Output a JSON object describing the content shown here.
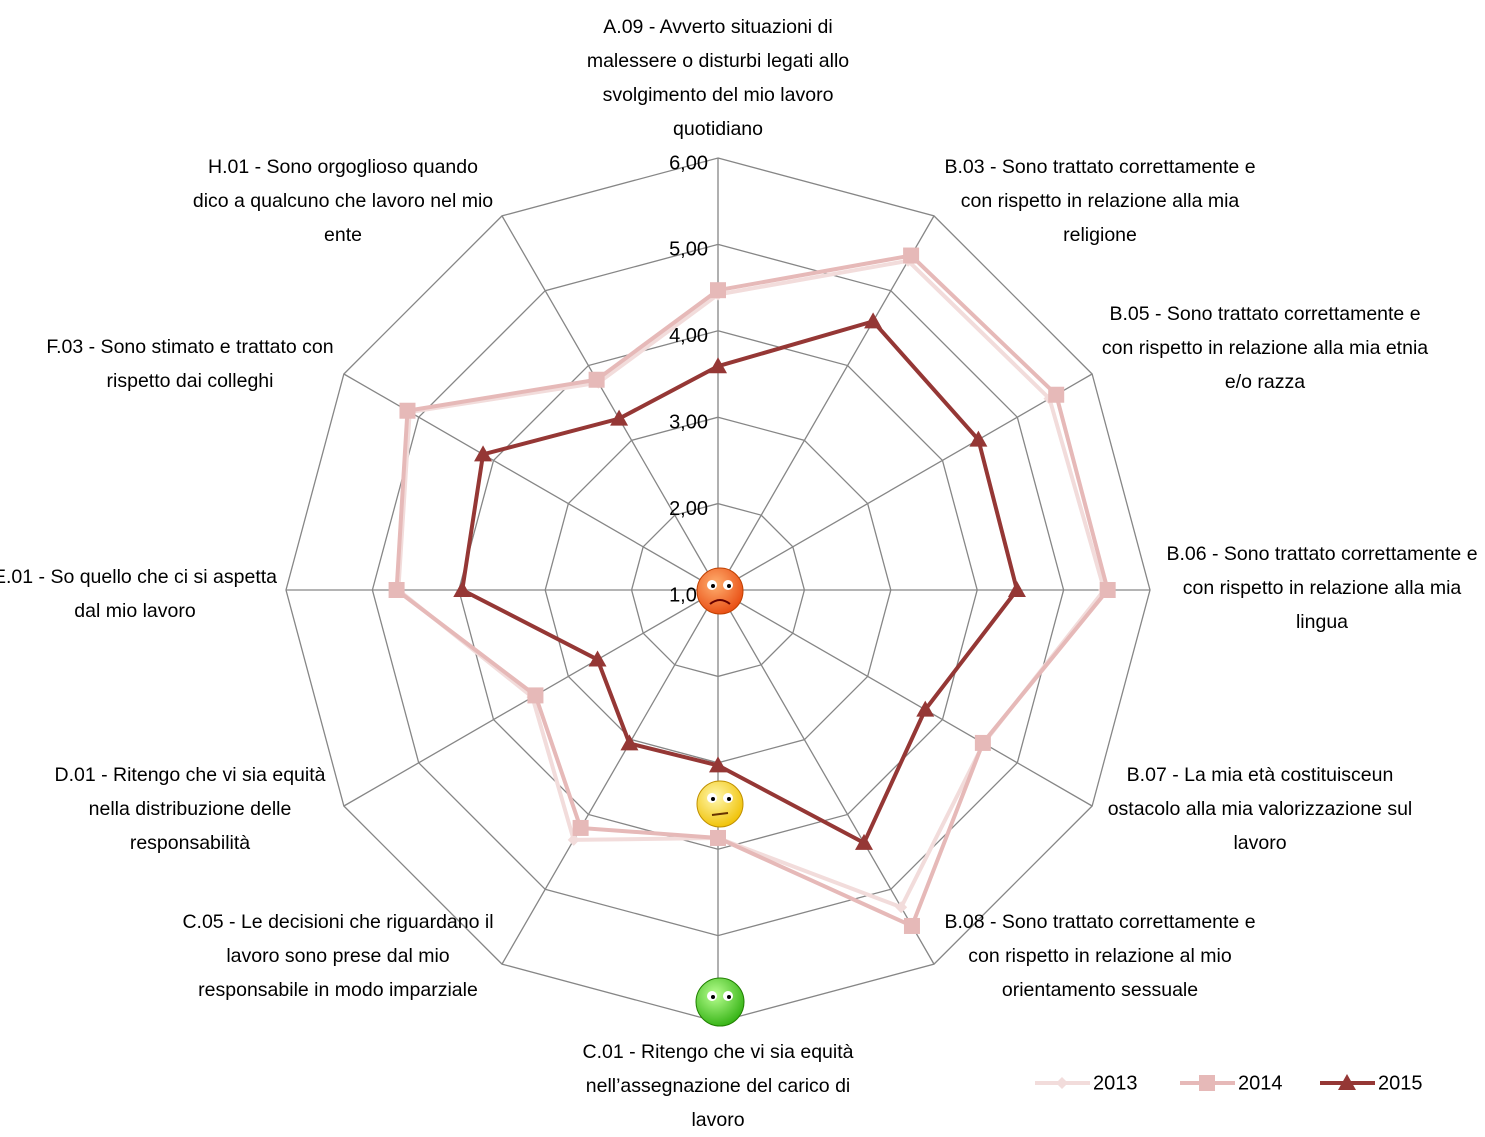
{
  "chart_data": {
    "type": "radar",
    "categories": [
      "A.09 - Avverto situazioni di malessere o disturbi legati allo svolgimento del mio lavoro quotidiano",
      "B.03 - Sono trattato correttamente e con rispetto in relazione alla mia religione",
      "B.05 - Sono trattato correttamente e con rispetto in relazione alla mia etnia e/o razza",
      "B.06 - Sono trattato correttamente e con rispetto in relazione alla mia lingua",
      "B.07 - La mia età costituisceun ostacolo alla mia valorizzazione sul lavoro",
      "B.08 - Sono trattato correttamente e con rispetto in relazione al mio orientamento sessuale",
      "C.01 - Ritengo che vi sia equità nell’assegnazione del carico di lavoro",
      "C.05 - Le decisioni che riguardano il lavoro sono prese dal mio responsabile in modo imparziale",
      "D.01 - Ritengo che vi sia equità nella distribuzione delle responsabilità",
      "E.01 - So quello che ci si aspetta dal mio lavoro",
      "F.03 - Sono stimato e trattato con rispetto dai colleghi",
      "H.01 - Sono orgoglioso quando dico a qualcuno che lavoro nel mio ente"
    ],
    "series": [
      {
        "name": "2013",
        "color": "#f2dcdb",
        "marker": "diamond",
        "values": [
          4.42,
          5.4,
          5.43,
          5.47,
          4.55,
          5.24,
          3.87,
          4.34,
          3.48,
          4.7,
          5.12,
          3.77
        ]
      },
      {
        "name": "2014",
        "color": "#e6b9b8",
        "marker": "square",
        "values": [
          4.47,
          5.47,
          5.52,
          5.51,
          4.54,
          5.49,
          3.87,
          4.18,
          3.44,
          4.72,
          5.15,
          3.81
        ]
      },
      {
        "name": "2015",
        "color": "#953735",
        "marker": "triangle",
        "values": [
          3.59,
          4.59,
          4.48,
          4.46,
          3.77,
          4.38,
          3.03,
          3.05,
          2.61,
          3.96,
          4.14,
          3.29
        ]
      }
    ],
    "ylim": [
      1,
      6
    ],
    "yticks": [
      {
        "value": 1,
        "label": "1,00"
      },
      {
        "value": 2,
        "label": "2,00"
      },
      {
        "value": 3,
        "label": "3,00"
      },
      {
        "value": 4,
        "label": "4,00"
      },
      {
        "value": 5,
        "label": "5,00"
      },
      {
        "value": 6,
        "label": "6,00"
      }
    ],
    "grid": true,
    "legend": "bottom-right"
  }
}
